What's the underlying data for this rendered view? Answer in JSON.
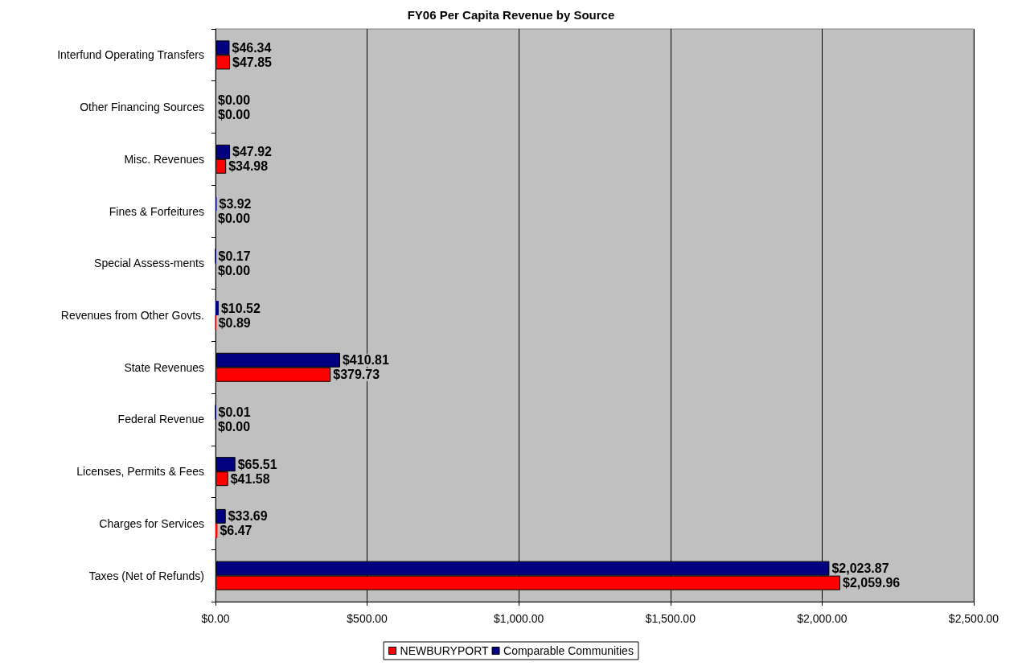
{
  "chart_data": {
    "type": "bar",
    "orientation": "horizontal",
    "title": "FY06 Per Capita Revenue by Source",
    "categories": [
      "Interfund Operating Transfers",
      "Other Financing Sources",
      "Misc. Revenues",
      "Fines & Forfeitures",
      "Special Assess-ments",
      "Revenues from Other Govts.",
      "State Revenues",
      "Federal Revenue",
      "Licenses, Permits & Fees",
      "Charges for Services",
      "Taxes (Net of Refunds)"
    ],
    "series": [
      {
        "name": "Comparable Communities",
        "color": "#000080",
        "values": [
          46.34,
          0,
          47.92,
          3.92,
          0.17,
          10.52,
          410.81,
          0.01,
          65.51,
          33.69,
          2023.87
        ],
        "value_labels": [
          "$46.34",
          "$0.00",
          "$47.92",
          "$3.92",
          "$0.17",
          "$10.52",
          "$410.81",
          "$0.01",
          "$65.51",
          "$33.69",
          "$2,023.87"
        ]
      },
      {
        "name": "NEWBURYPORT",
        "color": "#ff0000",
        "values": [
          47.85,
          0,
          34.98,
          0,
          0,
          0.89,
          379.73,
          0,
          41.58,
          6.47,
          2059.96
        ],
        "value_labels": [
          "$47.85",
          "$0.00",
          "$34.98",
          "$0.00",
          "$0.00",
          "$0.89",
          "$379.73",
          "$0.00",
          "$41.58",
          "$6.47",
          "$2,059.96"
        ]
      }
    ],
    "xlim": [
      0,
      2500
    ],
    "xticks": [
      {
        "value": 0,
        "label": "$0.00"
      },
      {
        "value": 500,
        "label": "$500.00"
      },
      {
        "value": 1000,
        "label": "$1,000.00"
      },
      {
        "value": 1500,
        "label": "$1,500.00"
      },
      {
        "value": 2000,
        "label": "$2,000.00"
      },
      {
        "value": 2500,
        "label": "$2,500.00"
      }
    ],
    "grid": "x",
    "legend": "bottom"
  }
}
